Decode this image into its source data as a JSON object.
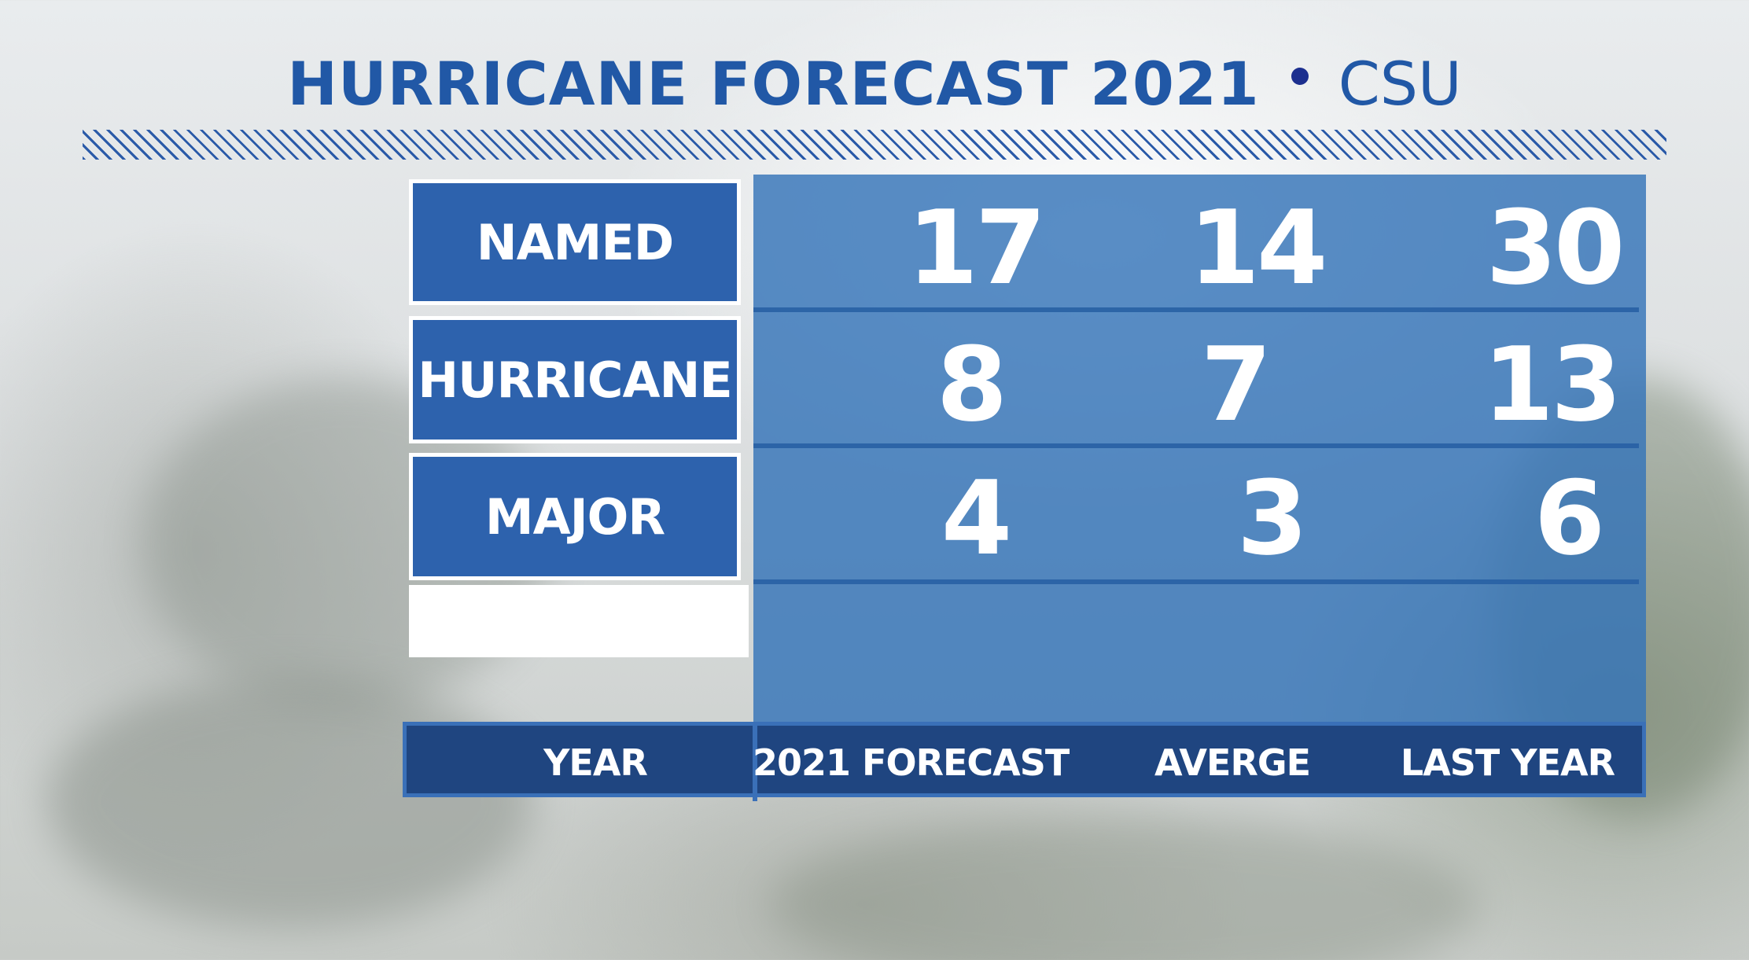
{
  "header": {
    "title": "HURRICANE FORECAST 2021",
    "source": "CSU"
  },
  "rows": [
    {
      "label": "NAMED",
      "values": [
        "17",
        "14",
        "30"
      ]
    },
    {
      "label": "HURRICANE",
      "values": [
        "8",
        "7",
        "13"
      ]
    },
    {
      "label": "MAJOR",
      "values": [
        "4",
        "3",
        "6"
      ]
    }
  ],
  "footer": {
    "row_header": "YEAR",
    "columns": [
      "2021 FORECAST",
      "AVERGE",
      "LAST YEAR"
    ]
  },
  "colors": {
    "title": "#2158a6",
    "label_box": "#2d62ad",
    "data_panel": "#3474b8",
    "footer": "#1f4580"
  }
}
